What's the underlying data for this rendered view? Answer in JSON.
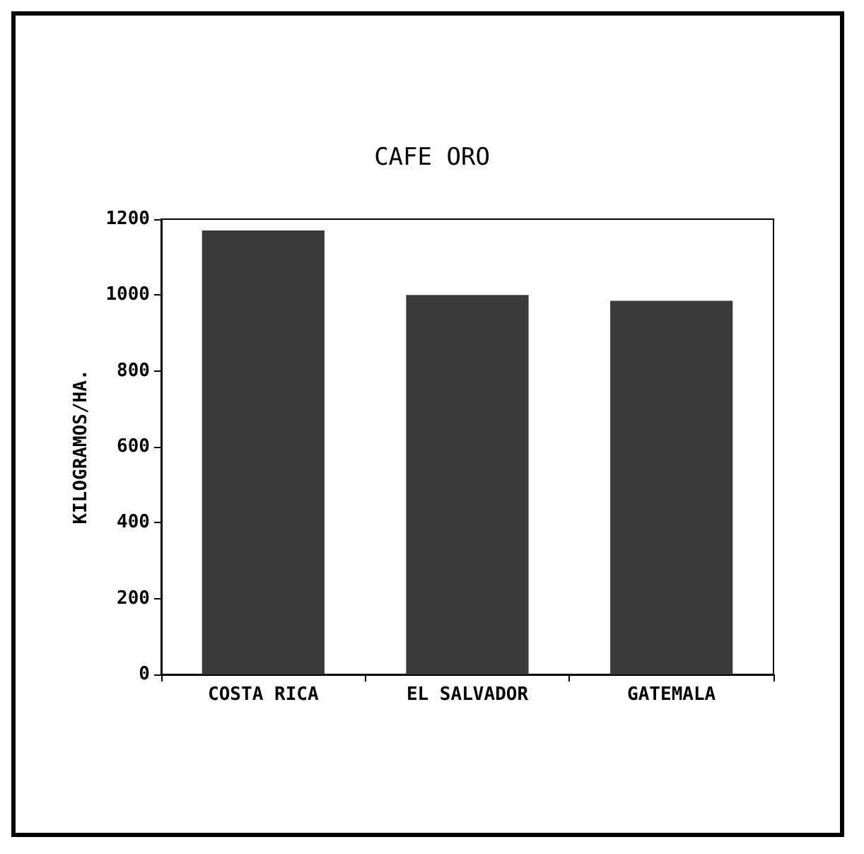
{
  "chart_data": {
    "type": "bar",
    "title": "CAFE ORO",
    "ylabel": "KILOGRAMOS/HA.",
    "categories": [
      "COSTA RICA",
      "EL SALVADOR",
      "GATEMALA"
    ],
    "values": [
      1170,
      1000,
      985
    ],
    "color": "#3a3a3a",
    "ylim": [
      0,
      1200
    ],
    "yticks": [
      0,
      200,
      400,
      600,
      800,
      1000,
      1200
    ]
  }
}
